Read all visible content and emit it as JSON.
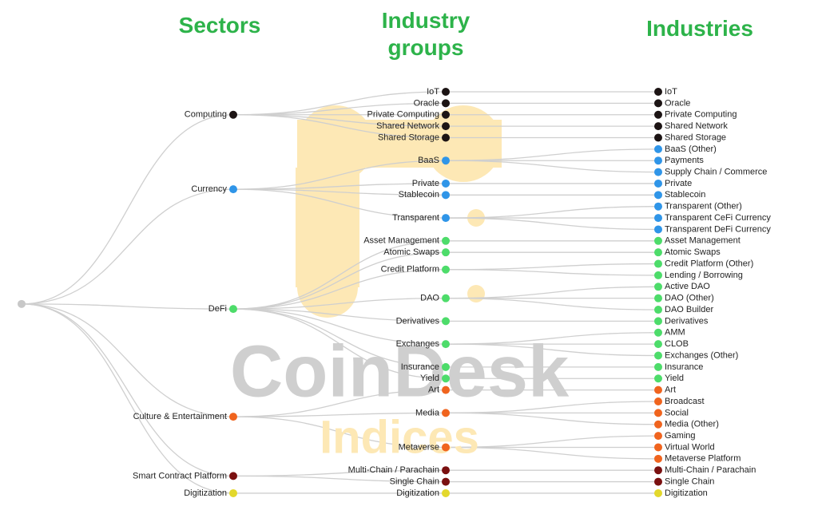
{
  "headers": {
    "sectors": "Sectors",
    "groups": "Industry groups",
    "industries": "Industries"
  },
  "watermark": {
    "brand": "CoinDesk",
    "sub": "Indices"
  },
  "sectors": [
    {
      "label": "Computing",
      "color": "#1c1414",
      "groups": [
        {
          "label": "IoT",
          "industries": [
            "IoT"
          ]
        },
        {
          "label": "Oracle",
          "industries": [
            "Oracle"
          ]
        },
        {
          "label": "Private Computing",
          "industries": [
            "Private Computing"
          ]
        },
        {
          "label": "Shared Network",
          "industries": [
            "Shared Network"
          ]
        },
        {
          "label": "Shared Storage",
          "industries": [
            "Shared Storage"
          ]
        }
      ]
    },
    {
      "label": "Currency",
      "color": "#2f95e8",
      "groups": [
        {
          "label": "BaaS",
          "industries": [
            "BaaS (Other)",
            "Payments",
            "Supply Chain / Commerce"
          ]
        },
        {
          "label": "Private",
          "industries": [
            "Private"
          ]
        },
        {
          "label": "Stablecoin",
          "industries": [
            "Stablecoin"
          ]
        },
        {
          "label": "Transparent",
          "industries": [
            "Transparent (Other)",
            "Transparent CeFi Currency",
            "Transparent DeFi Currency"
          ]
        }
      ]
    },
    {
      "label": "DeFi",
      "color": "#4ddc6a",
      "groups": [
        {
          "label": "Asset Management",
          "industries": [
            "Asset Management"
          ]
        },
        {
          "label": "Atomic Swaps",
          "industries": [
            "Atomic Swaps"
          ]
        },
        {
          "label": "Credit Platform",
          "industries": [
            "Credit Platform (Other)",
            "Lending / Borrowing"
          ]
        },
        {
          "label": "DAO",
          "industries": [
            "Active DAO",
            "DAO (Other)",
            "DAO Builder"
          ]
        },
        {
          "label": "Derivatives",
          "industries": [
            "Derivatives"
          ]
        },
        {
          "label": "Exchanges",
          "industries": [
            "AMM",
            "CLOB",
            "Exchanges (Other)"
          ]
        },
        {
          "label": "Insurance",
          "industries": [
            "Insurance"
          ]
        },
        {
          "label": "Yield",
          "industries": [
            "Yield"
          ]
        }
      ]
    },
    {
      "label": "Culture & Entertainment",
      "color": "#f0641e",
      "groups": [
        {
          "label": "Art",
          "industries": [
            "Art"
          ]
        },
        {
          "label": "Media",
          "industries": [
            "Broadcast",
            "Social",
            "Media (Other)"
          ]
        },
        {
          "label": "Metaverse",
          "industries": [
            "Gaming",
            "Virtual World",
            "Metaverse Platform"
          ]
        }
      ]
    },
    {
      "label": "Smart Contract Platform",
      "color": "#7a1010",
      "groups": [
        {
          "label": "Multi-Chain / Parachain",
          "industries": [
            "Multi-Chain / Parachain"
          ]
        },
        {
          "label": "Single Chain",
          "industries": [
            "Single Chain"
          ]
        }
      ]
    },
    {
      "label": "Digitization",
      "color": "#e3d82c",
      "groups": [
        {
          "label": "Digitization",
          "industries": [
            "Digitization"
          ]
        }
      ]
    }
  ]
}
